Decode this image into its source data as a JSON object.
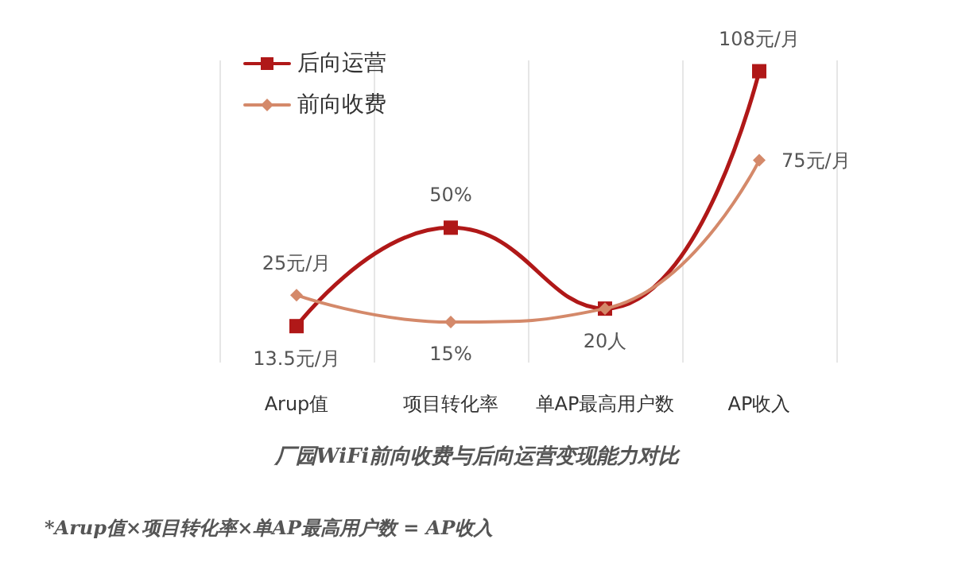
{
  "chart_data": {
    "type": "line",
    "title": "厂园WiFi前向收费与后向运营变现能力对比",
    "annotations": [
      "*Arup值×项目转化率×单AP最高用户数 = AP收入"
    ],
    "categories": [
      "Arup值",
      "项目转化率",
      "单AP最高用户数",
      "AP收入"
    ],
    "grid": "x",
    "legend": "top left",
    "line_style": "solid",
    "series": [
      {
        "name": "后向运营",
        "color": "#b01818",
        "marker": "square",
        "values": [
          13.5,
          50,
          20,
          108
        ],
        "value_labels": [
          "13.5元/月",
          "50%",
          "20人",
          "108元/月"
        ]
      },
      {
        "name": "前向收费",
        "color": "#d4896a",
        "marker": "diamond",
        "values": [
          25,
          15,
          20,
          75
        ],
        "value_labels": [
          "25元/月",
          "15%",
          null,
          "75元/月"
        ]
      }
    ]
  }
}
